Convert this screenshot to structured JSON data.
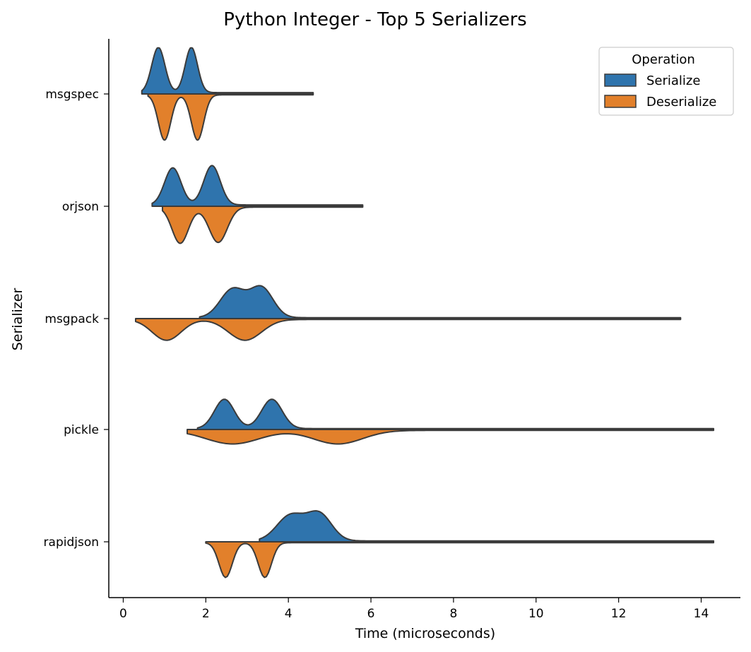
{
  "chart_data": {
    "type": "split-violin",
    "title": "Python Integer - Top 5 Serializers",
    "xlabel": "Time (microseconds)",
    "ylabel": "Serializer",
    "xlim": [
      -0.35,
      14.95
    ],
    "xticks": [
      0,
      2,
      4,
      6,
      8,
      10,
      12,
      14
    ],
    "grid": false,
    "legend": {
      "title": "Operation",
      "placement": "top-right"
    },
    "categories": [
      "msgspec",
      "orjson",
      "msgpack",
      "pickle",
      "rapidjson"
    ],
    "series": [
      {
        "name": "Serialize",
        "color": "#2f74ad",
        "side": "upper",
        "violins": [
          {
            "category": "msgspec",
            "min": 0.45,
            "max": 4.6,
            "modes": [
              [
                0.85,
                0.16,
                1.0
              ],
              [
                1.65,
                0.15,
                1.0
              ]
            ],
            "tail": 0.03
          },
          {
            "category": "orjson",
            "min": 0.7,
            "max": 5.8,
            "modes": [
              [
                1.2,
                0.2,
                0.82
              ],
              [
                2.15,
                0.2,
                0.87
              ]
            ],
            "tail": 0.03
          },
          {
            "category": "msgpack",
            "min": 1.85,
            "max": 13.5,
            "modes": [
              [
                2.65,
                0.3,
                0.63
              ],
              [
                3.35,
                0.28,
                0.66
              ]
            ],
            "tail": 0.02
          },
          {
            "category": "pickle",
            "min": 1.8,
            "max": 14.3,
            "modes": [
              [
                2.45,
                0.24,
                0.65
              ],
              [
                3.6,
                0.25,
                0.65
              ]
            ],
            "tail": 0.02
          },
          {
            "category": "rapidjson",
            "min": 3.3,
            "max": 14.3,
            "modes": [
              [
                4.05,
                0.33,
                0.56
              ],
              [
                4.75,
                0.3,
                0.59
              ]
            ],
            "tail": 0.02
          }
        ]
      },
      {
        "name": "Deserialize",
        "color": "#e2802b",
        "side": "lower",
        "violins": [
          {
            "category": "msgspec",
            "min": 0.6,
            "max": 4.6,
            "modes": [
              [
                1.0,
                0.15,
                1.0
              ],
              [
                1.8,
                0.15,
                1.0
              ]
            ],
            "tail": 0.02
          },
          {
            "category": "orjson",
            "min": 0.95,
            "max": 5.8,
            "modes": [
              [
                1.38,
                0.2,
                0.8
              ],
              [
                2.3,
                0.22,
                0.78
              ]
            ],
            "tail": 0.02
          },
          {
            "category": "msgpack",
            "min": 0.3,
            "max": 13.5,
            "modes": [
              [
                1.05,
                0.35,
                0.46
              ],
              [
                2.95,
                0.4,
                0.46
              ]
            ],
            "tail": 0.02
          },
          {
            "category": "pickle",
            "min": 1.55,
            "max": 14.3,
            "modes": [
              [
                2.65,
                0.65,
                0.3
              ],
              [
                5.2,
                0.6,
                0.3
              ]
            ],
            "tail": 0.02
          },
          {
            "category": "rapidjson",
            "min": 2.0,
            "max": 14.3,
            "modes": [
              [
                2.48,
                0.16,
                0.77
              ],
              [
                3.43,
                0.16,
                0.77
              ]
            ],
            "tail": 0.02
          }
        ]
      }
    ]
  }
}
